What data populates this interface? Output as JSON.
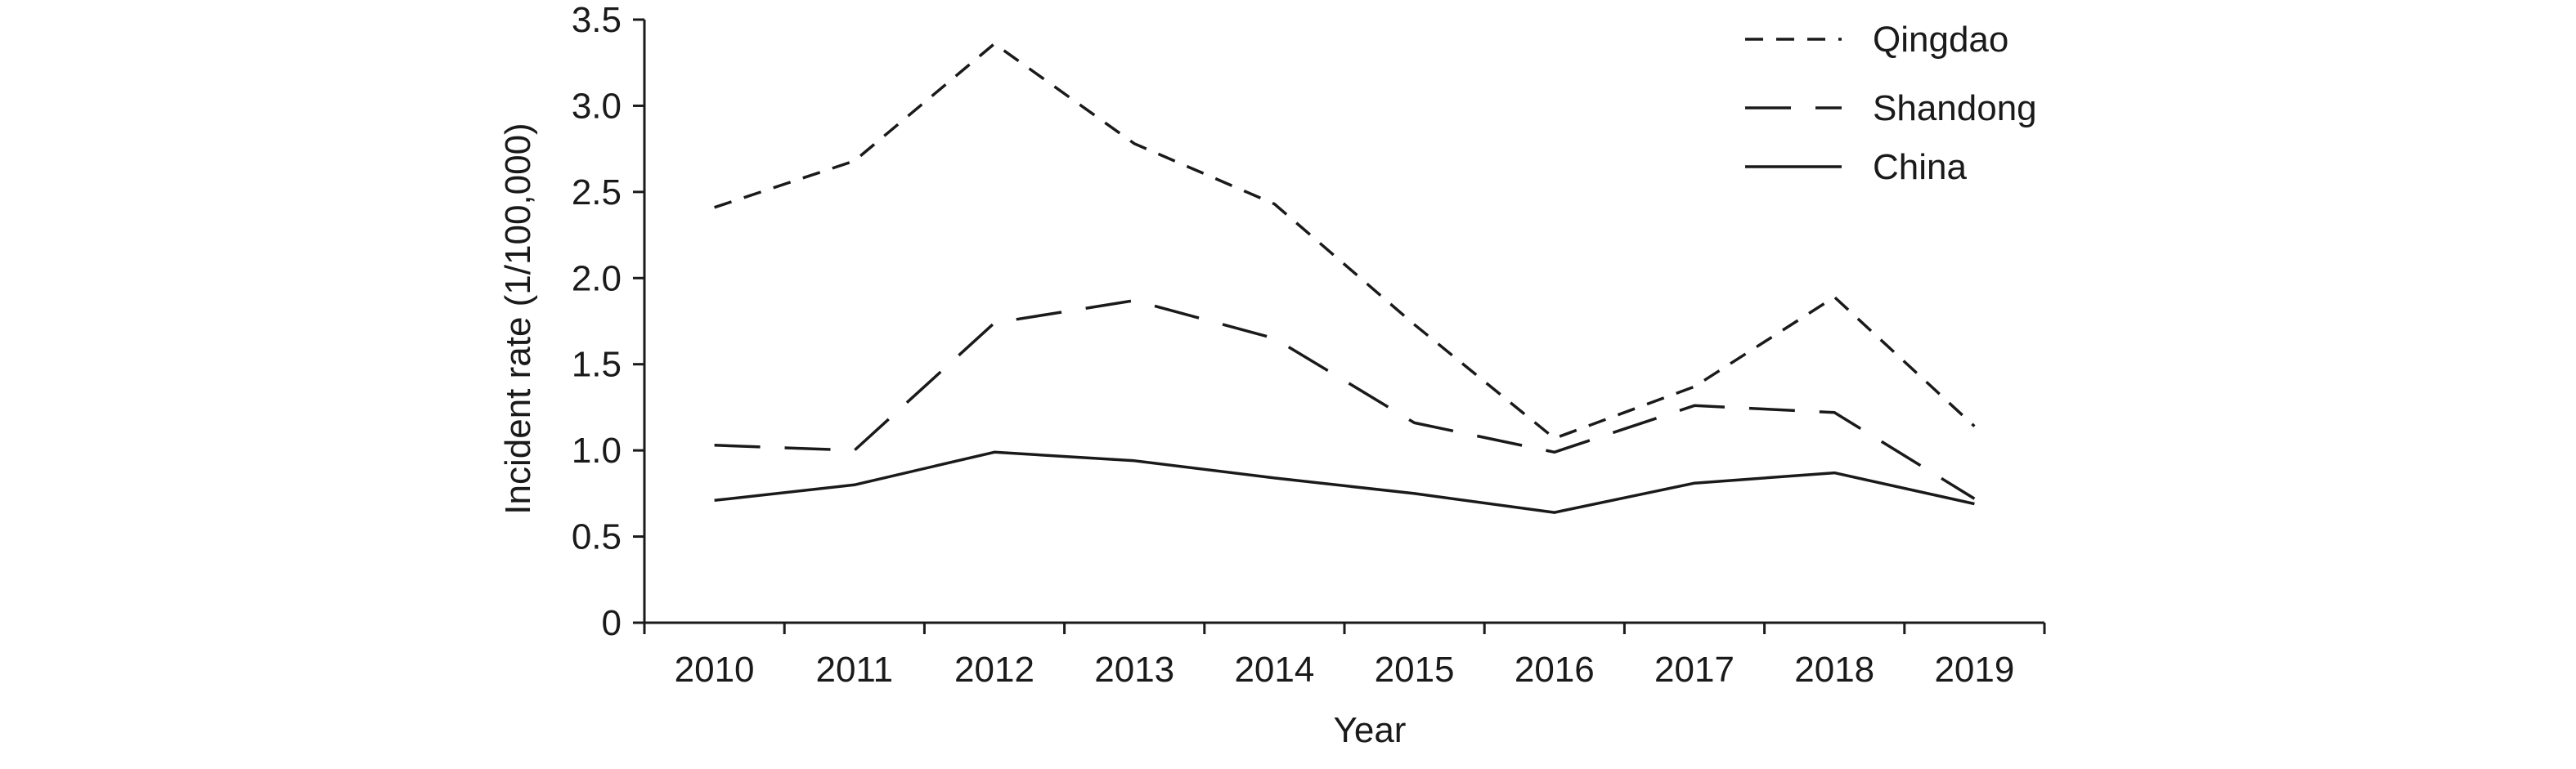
{
  "chart_data": {
    "type": "line",
    "title": "",
    "xlabel": "Year",
    "ylabel": "Incident rate (1/100,000)",
    "categories": [
      "2010",
      "2011",
      "2012",
      "2013",
      "2014",
      "2015",
      "2016",
      "2017",
      "2018",
      "2019"
    ],
    "ylim": [
      0,
      3.5
    ],
    "yticks": [
      "0",
      "0.5",
      "1.0",
      "1.5",
      "2.0",
      "2.5",
      "3.0",
      "3.5"
    ],
    "grid": false,
    "legend_position": "top-right",
    "series": [
      {
        "name": "Qingdao",
        "line_style": "short-dash",
        "color": "#1a1a1a",
        "values": [
          2.41,
          2.68,
          3.36,
          2.78,
          2.43,
          1.73,
          1.07,
          1.37,
          1.89,
          1.14
        ]
      },
      {
        "name": "Shandong",
        "line_style": "long-dash",
        "color": "#1a1a1a",
        "values": [
          1.03,
          1.0,
          1.74,
          1.87,
          1.65,
          1.16,
          0.99,
          1.26,
          1.22,
          0.72
        ]
      },
      {
        "name": "China",
        "line_style": "solid",
        "color": "#1a1a1a",
        "values": [
          0.71,
          0.8,
          0.99,
          0.94,
          0.84,
          0.75,
          0.64,
          0.81,
          0.87,
          0.69
        ]
      }
    ]
  }
}
